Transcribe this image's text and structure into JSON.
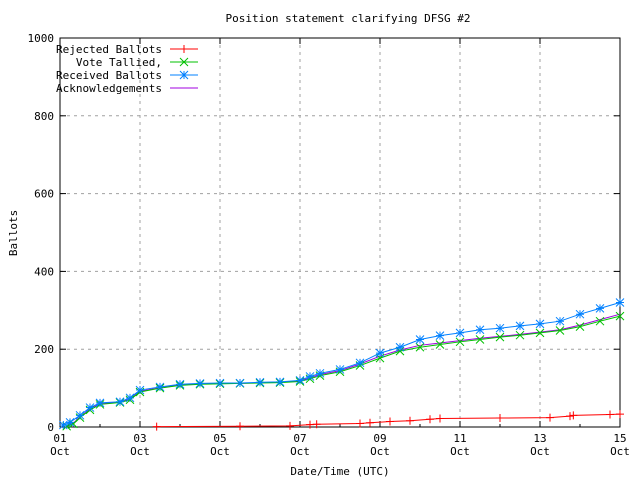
{
  "chart_data": {
    "type": "line",
    "title": "Position statement clarifying DFSG #2",
    "xlabel": "Date/Time (UTC)",
    "ylabel": "Ballots",
    "xlim": [
      "10-01 00:00",
      "10-15 00:00"
    ],
    "ylim": [
      0,
      1000
    ],
    "grid": true,
    "legend_position": "top-left",
    "x_ticks": [
      {
        "at": "10-01 00:00",
        "day": "01",
        "month": "Oct"
      },
      {
        "at": "10-03 00:00",
        "day": "03",
        "month": "Oct"
      },
      {
        "at": "10-05 00:00",
        "day": "05",
        "month": "Oct"
      },
      {
        "at": "10-07 00:00",
        "day": "07",
        "month": "Oct"
      },
      {
        "at": "10-09 00:00",
        "day": "09",
        "month": "Oct"
      },
      {
        "at": "10-11 00:00",
        "day": "11",
        "month": "Oct"
      },
      {
        "at": "10-13 00:00",
        "day": "13",
        "month": "Oct"
      },
      {
        "at": "10-15 00:00",
        "day": "15",
        "month": "Oct"
      }
    ],
    "y_ticks": [
      0,
      200,
      400,
      600,
      800,
      1000
    ],
    "series": [
      {
        "name": "Rejected Ballots",
        "color": "#ff0000",
        "marker": "plus",
        "x": [
          "10-03 10:00",
          "10-05 12:00",
          "10-06 18:00",
          "10-07 06:00",
          "10-07 10:00",
          "10-08 12:00",
          "10-08 18:00",
          "10-09 06:00",
          "10-09 18:00",
          "10-10 06:00",
          "10-10 12:00",
          "10-12 00:00",
          "10-13 06:00",
          "10-13 18:00",
          "10-13 20:00",
          "10-14 18:00",
          "10-15 00:00"
        ],
        "y": [
          1,
          2,
          3,
          6,
          7,
          9,
          11,
          14,
          16,
          20,
          22,
          23,
          24,
          28,
          30,
          32,
          33
        ]
      },
      {
        "name": "Vote Tallied,",
        "color": "#00c000",
        "marker": "cross",
        "x": [
          "10-01 04:00",
          "10-01 08:00",
          "10-01 12:00",
          "10-01 18:00",
          "10-02 00:00",
          "10-02 12:00",
          "10-02 18:00",
          "10-03 00:00",
          "10-03 12:00",
          "10-04 00:00",
          "10-04 12:00",
          "10-05 00:00",
          "10-05 12:00",
          "10-06 00:00",
          "10-06 12:00",
          "10-07 00:00",
          "10-07 06:00",
          "10-07 12:00",
          "10-08 00:00",
          "10-08 12:00",
          "10-09 00:00",
          "10-09 12:00",
          "10-10 00:00",
          "10-10 12:00",
          "10-11 00:00",
          "10-11 12:00",
          "10-12 00:00",
          "10-12 12:00",
          "10-13 00:00",
          "10-13 12:00",
          "10-14 00:00",
          "10-14 12:00",
          "10-15 00:00"
        ],
        "y": [
          2,
          8,
          24,
          44,
          58,
          63,
          70,
          90,
          100,
          107,
          110,
          111,
          112,
          113,
          114,
          117,
          124,
          132,
          142,
          158,
          177,
          195,
          205,
          212,
          219,
          225,
          231,
          236,
          242,
          248,
          258,
          272,
          285
        ]
      },
      {
        "name": "Received Ballots",
        "color": "#0080ff",
        "marker": "star",
        "x": [
          "10-01 02:00",
          "10-01 06:00",
          "10-01 12:00",
          "10-01 18:00",
          "10-02 00:00",
          "10-02 12:00",
          "10-02 18:00",
          "10-03 00:00",
          "10-03 12:00",
          "10-04 00:00",
          "10-04 12:00",
          "10-05 00:00",
          "10-05 12:00",
          "10-06 00:00",
          "10-06 12:00",
          "10-07 00:00",
          "10-07 06:00",
          "10-07 12:00",
          "10-08 00:00",
          "10-08 12:00",
          "10-09 00:00",
          "10-09 12:00",
          "10-10 00:00",
          "10-10 12:00",
          "10-11 00:00",
          "10-11 12:00",
          "10-12 00:00",
          "10-12 12:00",
          "10-13 00:00",
          "10-13 12:00",
          "10-14 00:00",
          "10-14 12:00",
          "10-15 00:00"
        ],
        "y": [
          5,
          12,
          30,
          50,
          62,
          65,
          75,
          95,
          103,
          110,
          112,
          113,
          113,
          115,
          116,
          120,
          130,
          138,
          148,
          165,
          190,
          205,
          225,
          235,
          242,
          250,
          254,
          260,
          265,
          272,
          290,
          305,
          320
        ]
      },
      {
        "name": "Acknowledgements",
        "color": "#a000e0",
        "marker": "none",
        "x": [
          "10-01 04:00",
          "10-01 08:00",
          "10-01 12:00",
          "10-01 18:00",
          "10-02 00:00",
          "10-02 12:00",
          "10-02 18:00",
          "10-03 00:00",
          "10-03 12:00",
          "10-04 00:00",
          "10-04 12:00",
          "10-05 00:00",
          "10-05 12:00",
          "10-06 00:00",
          "10-06 12:00",
          "10-07 00:00",
          "10-07 06:00",
          "10-07 12:00",
          "10-08 00:00",
          "10-08 12:00",
          "10-09 00:00",
          "10-09 12:00",
          "10-10 00:00",
          "10-10 12:00",
          "10-11 00:00",
          "10-11 12:00",
          "10-12 00:00",
          "10-12 12:00",
          "10-13 00:00",
          "10-13 12:00",
          "10-14 00:00",
          "10-14 12:00",
          "10-15 00:00"
        ],
        "y": [
          4,
          10,
          26,
          46,
          60,
          64,
          72,
          92,
          101,
          108,
          111,
          112,
          112,
          114,
          115,
          118,
          127,
          135,
          145,
          162,
          182,
          198,
          210,
          216,
          222,
          228,
          233,
          238,
          244,
          250,
          262,
          276,
          290
        ]
      }
    ]
  }
}
